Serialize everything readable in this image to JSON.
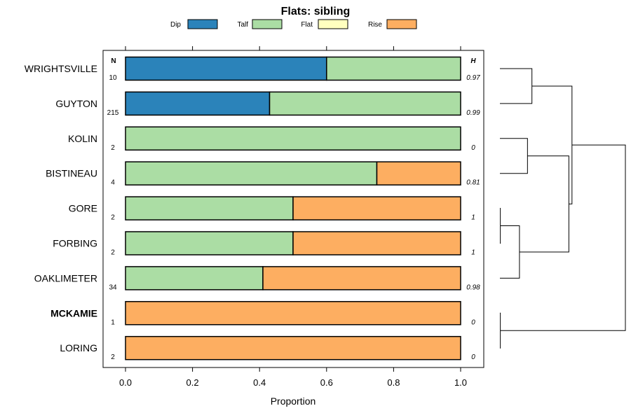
{
  "chart_data": {
    "type": "bar",
    "orientation": "horizontal",
    "stacked": true,
    "title": "Flats: sibling",
    "xlabel": "Proportion",
    "ylabel": "",
    "xlim": [
      0,
      1
    ],
    "x_ticks": [
      "0.0",
      "0.2",
      "0.4",
      "0.6",
      "0.8",
      "1.0"
    ],
    "x_tick_values": [
      0,
      0.2,
      0.4,
      0.6,
      0.8,
      1.0
    ],
    "n_header": "N",
    "h_header": "H",
    "legend_position": "top",
    "legend": [
      {
        "name": "Dip",
        "color": "#2b83ba"
      },
      {
        "name": "Talf",
        "color": "#abdda4"
      },
      {
        "name": "Flat",
        "color": "#ffffbf"
      },
      {
        "name": "Rise",
        "color": "#fdae61"
      }
    ],
    "categories": [
      "WRIGHTSVILLE",
      "GUYTON",
      "KOLIN",
      "BISTINEAU",
      "GORE",
      "FORBING",
      "OAKLIMETER",
      "MCKAMIE",
      "LORING"
    ],
    "highlighted_category": "MCKAMIE",
    "series": [
      {
        "name": "Dip",
        "values": [
          0.6,
          0.43,
          0,
          0,
          0,
          0,
          0,
          0,
          0
        ]
      },
      {
        "name": "Talf",
        "values": [
          0.4,
          0.57,
          1.0,
          0.75,
          0.5,
          0.5,
          0.41,
          0,
          0
        ]
      },
      {
        "name": "Flat",
        "values": [
          0,
          0,
          0,
          0,
          0,
          0,
          0,
          0,
          0
        ]
      },
      {
        "name": "Rise",
        "values": [
          0,
          0,
          0,
          0.25,
          0.5,
          0.5,
          0.59,
          1.0,
          1.0
        ]
      }
    ],
    "n": [
      "10",
      "215",
      "2",
      "4",
      "2",
      "2",
      "34",
      "1",
      "2"
    ],
    "h": [
      "0.97",
      "0.99",
      "0",
      "0.81",
      "1",
      "1",
      "0.98",
      "0",
      "0"
    ],
    "dendrogram": {
      "type": "cluster-tree",
      "merges": [
        {
          "left": "WRIGHTSVILLE",
          "right": "GUYTON",
          "height": 0.72
        },
        {
          "left": "KOLIN",
          "right": "BISTINEAU",
          "height": 0.62
        },
        {
          "left": "GORE",
          "right": "FORBING",
          "height": 0.0
        },
        {
          "left": "GORE+FORBING",
          "right": "OAKLIMETER",
          "height": 0.44
        },
        {
          "left": "KOLIN+BISTINEAU",
          "right": "GORE+FORBING+OAKLIMETER",
          "height": 1.55
        },
        {
          "left": "WRIGHTSVILLE+GUYTON",
          "right": "KOLIN..OAKLIMETER",
          "height": 1.62
        },
        {
          "left": "MCKAMIE",
          "right": "LORING",
          "height": 0.0
        },
        {
          "left": "WRIGHTSVILLE..OAKLIMETER",
          "right": "MCKAMIE+LORING",
          "height": 2.82
        }
      ]
    }
  }
}
